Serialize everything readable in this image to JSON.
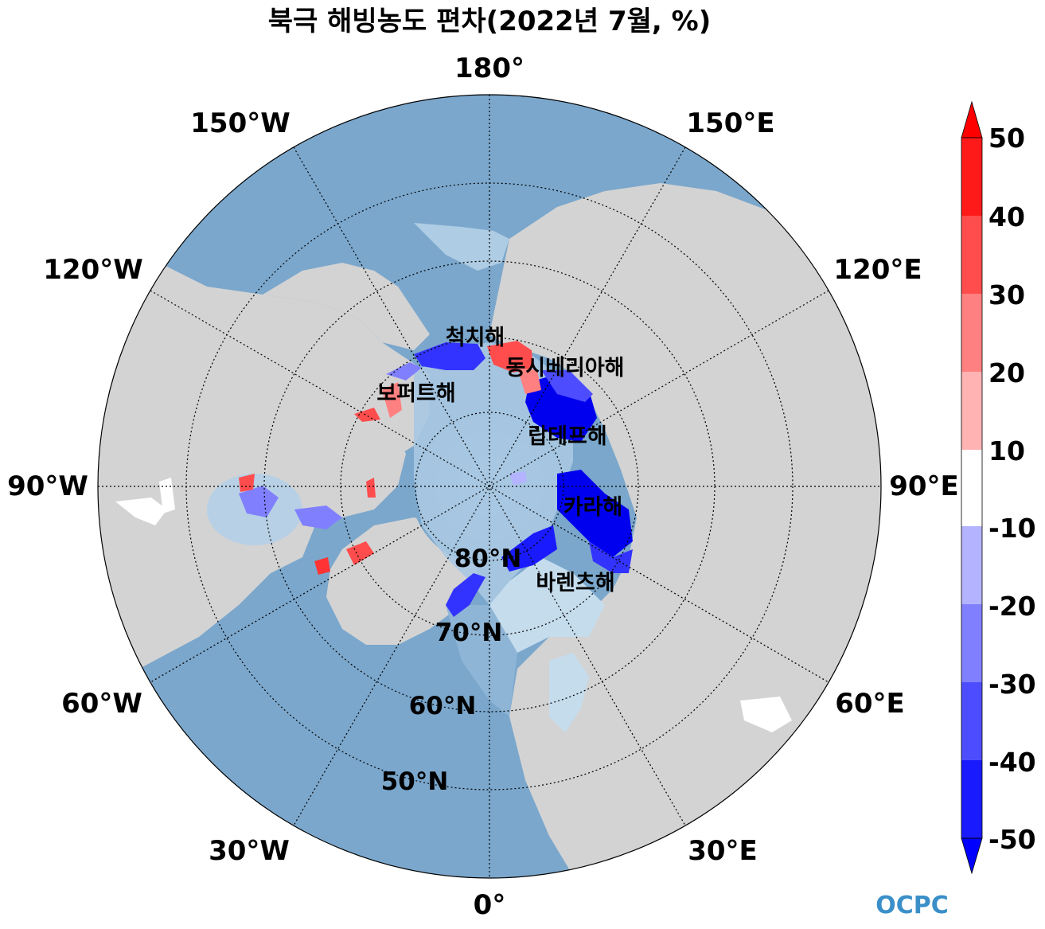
{
  "title": "북극 해빙농도 편차(2022년 7월, %)",
  "longitude_labels": {
    "lon_180": "180°",
    "lon_150w": "150°W",
    "lon_150e": "150°E",
    "lon_120w": "120°W",
    "lon_120e": "120°E",
    "lon_90w": "90°W",
    "lon_90e": "90°E",
    "lon_60w": "60°W",
    "lon_60e": "60°E",
    "lon_30w": "30°W",
    "lon_30e": "30°E",
    "lon_0": "0°"
  },
  "latitude_labels": {
    "lat_80": "80°N",
    "lat_70": "70°N",
    "lat_60": "60°N",
    "lat_50": "50°N"
  },
  "sea_labels": {
    "chukchi": "척치해",
    "east_siberian": "동시베리아해",
    "beaufort": "보퍼트해",
    "laptev": "랍테프해",
    "kara": "카라해",
    "barents": "바렌츠해"
  },
  "colorbar": {
    "ticks": [
      "50",
      "40",
      "30",
      "20",
      "10",
      "-10",
      "-20",
      "-30",
      "-40",
      "-50"
    ],
    "levels": [
      50,
      40,
      30,
      20,
      10,
      -10,
      -20,
      -30,
      -40,
      -50
    ],
    "colors": [
      "#ff1a1a",
      "#ff4d4d",
      "#ff8080",
      "#ffb3b3",
      "#ffffff",
      "#b3b3ff",
      "#8080ff",
      "#4d4dff",
      "#1a1aff"
    ],
    "extend_max_color": "#ff0000",
    "extend_min_color": "#0000ff"
  },
  "map_colors": {
    "land": "#d3d3d3",
    "ocean": "#7ba7cc",
    "ocean_light": "#c5dced",
    "arctic_core": "#8fb5d6"
  },
  "logo": "OCPC"
}
